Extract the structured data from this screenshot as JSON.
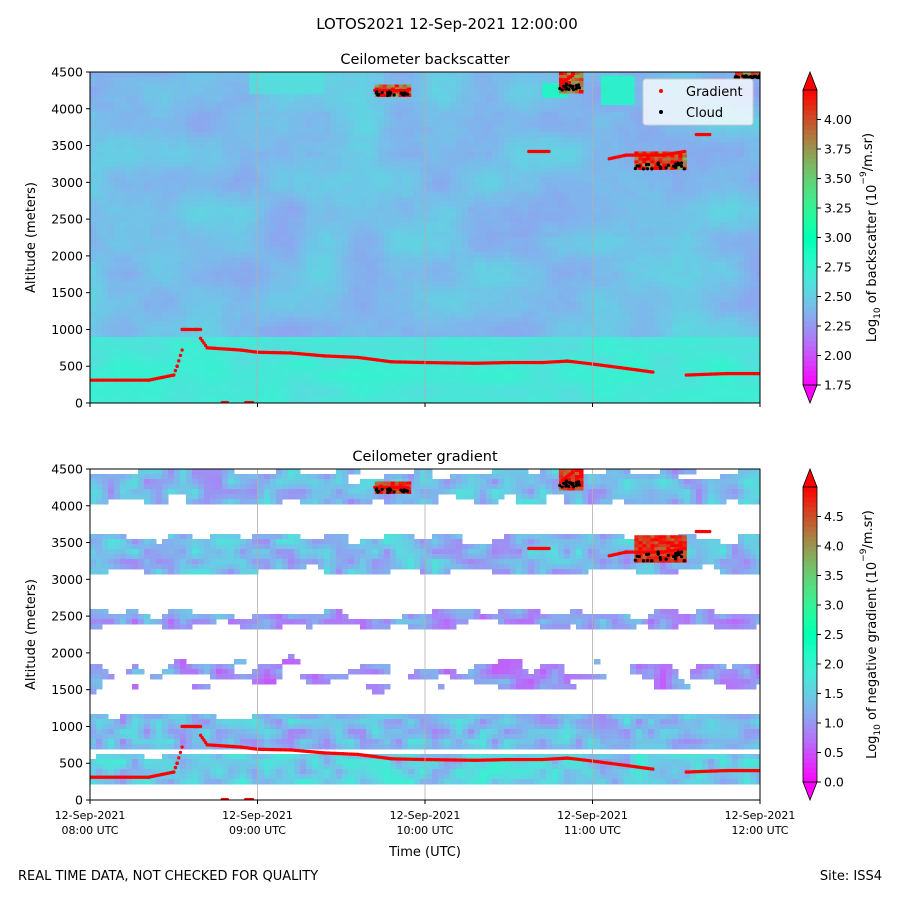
{
  "figure": {
    "suptitle": "LOTOS2021 12-Sep-2021 12:00:00",
    "footer_left": "REAL TIME DATA, NOT CHECKED FOR QUALITY",
    "footer_right": "Site: ISS4"
  },
  "chart_data": [
    {
      "type": "heatmap",
      "title": "Ceilometer backscatter",
      "ylabel": "Altitude (meters)",
      "xlabel": "",
      "xlim_hours": [
        8,
        12
      ],
      "ylim": [
        0,
        4500
      ],
      "yticks": [
        0,
        500,
        1000,
        1500,
        2000,
        2500,
        3000,
        3500,
        4000,
        4500
      ],
      "ytick_labels": [
        "0",
        "500",
        "1000",
        "1500",
        "2000",
        "2500",
        "3000",
        "3500",
        "4000",
        "4500"
      ],
      "xtick_hours": [
        8,
        9,
        10,
        11,
        12
      ],
      "grid_x_hours": [
        9,
        10,
        11
      ],
      "colorbar": {
        "label_prefix": "Log",
        "label_sub": "10",
        "label_mid": " of backscatter (10",
        "label_sup": "−9",
        "label_end": "/m.sr)",
        "cmap": "rainbow",
        "vmin": 1.75,
        "vmax": 4.25,
        "ticks": [
          1.75,
          2.0,
          2.25,
          2.5,
          2.75,
          3.0,
          3.25,
          3.5,
          3.75,
          4.0
        ],
        "tick_labels": [
          "1.75",
          "2.00",
          "2.25",
          "2.50",
          "2.75",
          "3.00",
          "3.25",
          "3.50",
          "3.75",
          "4.00"
        ]
      },
      "legend": {
        "position": "top-right",
        "entries": [
          "Gradient",
          "Cloud"
        ],
        "gradient_color": "#ff0000",
        "cloud_color": "#000000"
      },
      "field": {
        "type": "background",
        "base_value": 2.42,
        "near_surface_value": 2.65,
        "near_surface_top_m": 900
      },
      "patches": [
        {
          "t0": 10.7,
          "t1": 10.85,
          "z0": 4150,
          "z1": 4350,
          "value": 2.9
        },
        {
          "t0": 11.05,
          "t1": 11.25,
          "z0": 4050,
          "z1": 4450,
          "value": 2.85
        },
        {
          "t0": 8.95,
          "t1": 9.4,
          "z0": 4200,
          "z1": 4500,
          "value": 2.6
        }
      ],
      "cloud_blobs": [
        {
          "t0": 9.7,
          "t1": 9.9,
          "z0": 4180,
          "z1": 4330
        },
        {
          "t0": 10.8,
          "t1": 10.93,
          "z0": 4250,
          "z1": 4500
        },
        {
          "t0": 11.25,
          "t1": 11.55,
          "z0": 3180,
          "z1": 3420
        },
        {
          "t0": 11.85,
          "t1": 12.0,
          "z0": 4420,
          "z1": 4500
        }
      ],
      "gradient_points": {
        "segments": [
          {
            "t": [
              8.0,
              8.35,
              8.5,
              8.52,
              8.55
            ],
            "z": [
              310,
              310,
              380,
              500,
              720
            ]
          },
          {
            "t": [
              8.55,
              8.57,
              8.63,
              8.66
            ],
            "z": [
              1000,
              1000,
              1000,
              1000
            ]
          },
          {
            "t": [
              8.66,
              8.7,
              8.9,
              9.0,
              9.2,
              9.4,
              9.6,
              9.8,
              10.0,
              10.3,
              10.5,
              10.7,
              10.85,
              11.0,
              11.2,
              11.36
            ],
            "z": [
              880,
              750,
              720,
              690,
              680,
              640,
              620,
              560,
              550,
              540,
              550,
              550,
              570,
              530,
              470,
              420
            ]
          },
          {
            "t": [
              11.56,
              11.8,
              12.0
            ],
            "z": [
              380,
              400,
              400
            ]
          },
          {
            "t": [
              8.79,
              8.82
            ],
            "z": [
              5,
              5
            ]
          },
          {
            "t": [
              8.93,
              8.97
            ],
            "z": [
              5,
              5
            ]
          },
          {
            "t": [
              10.62,
              10.74
            ],
            "z": [
              3420,
              3420
            ]
          },
          {
            "t": [
              11.1,
              11.2,
              11.42,
              11.55
            ],
            "z": [
              3320,
              3370,
              3370,
              3420
            ]
          },
          {
            "t": [
              11.62,
              11.7
            ],
            "z": [
              3650,
              3650
            ]
          },
          {
            "t": [
              9.7,
              9.9
            ],
            "z": [
              4250,
              4250
            ]
          },
          {
            "t": [
              10.82,
              10.88
            ],
            "z": [
              4350,
              4450
            ]
          }
        ]
      }
    },
    {
      "type": "heatmap",
      "title": "Ceilometer gradient",
      "ylabel": "Altitude (meters)",
      "xlabel": "Time (UTC)",
      "xlim_hours": [
        8,
        12
      ],
      "ylim": [
        0,
        4500
      ],
      "yticks": [
        0,
        500,
        1000,
        1500,
        2000,
        2500,
        3000,
        3500,
        4000,
        4500
      ],
      "ytick_labels": [
        "0",
        "500",
        "1000",
        "1500",
        "2000",
        "2500",
        "3000",
        "3500",
        "4000",
        "4500"
      ],
      "xtick_hours": [
        8,
        9,
        10,
        11,
        12
      ],
      "xtick_labels": [
        [
          "12-Sep-2021",
          "08:00 UTC"
        ],
        [
          "12-Sep-2021",
          "09:00 UTC"
        ],
        [
          "12-Sep-2021",
          "10:00 UTC"
        ],
        [
          "12-Sep-2021",
          "11:00 UTC"
        ],
        [
          "12-Sep-2021",
          "12:00 UTC"
        ]
      ],
      "grid_x_hours": [
        9,
        10,
        11
      ],
      "colorbar": {
        "label_prefix": "Log",
        "label_sub": "10",
        "label_mid": " of negative gradient (10",
        "label_sup": "−9",
        "label_end": "/m.sr)",
        "cmap": "rainbow",
        "vmin": 0.0,
        "vmax": 5.0,
        "ticks": [
          0.0,
          0.5,
          1.0,
          1.5,
          2.0,
          2.5,
          3.0,
          3.5,
          4.0,
          4.5
        ],
        "tick_labels": [
          "0.0",
          "0.5",
          "1.0",
          "1.5",
          "2.0",
          "2.5",
          "3.0",
          "3.5",
          "4.0",
          "4.5"
        ]
      },
      "layers": [
        {
          "z0": 4000,
          "z1": 4500,
          "value": 1.3,
          "fill": 0.65
        },
        {
          "z0": 3100,
          "z1": 3600,
          "value": 1.3,
          "fill": 0.75
        },
        {
          "z0": 2300,
          "z1": 2600,
          "value": 1.1,
          "fill": 0.5
        },
        {
          "z0": 1400,
          "z1": 2000,
          "value": 1.0,
          "fill": 0.35
        },
        {
          "z0": 700,
          "z1": 1150,
          "value": 1.3,
          "fill": 0.92
        },
        {
          "z0": 200,
          "z1": 600,
          "value": 1.5,
          "fill": 0.9
        }
      ],
      "cloud_blobs": [
        {
          "t0": 9.7,
          "t1": 9.9,
          "z0": 4180,
          "z1": 4330
        },
        {
          "t0": 10.8,
          "t1": 10.93,
          "z0": 4250,
          "z1": 4500
        },
        {
          "t0": 11.25,
          "t1": 11.55,
          "z0": 3250,
          "z1": 3600
        }
      ]
    }
  ]
}
